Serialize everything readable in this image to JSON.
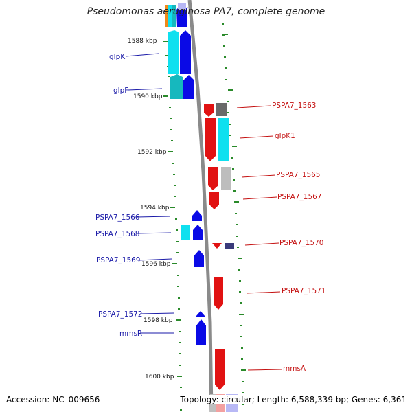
{
  "title": "Pseudomonas aeruginosa PA7, complete genome",
  "accession": "Accession: NC_009656",
  "topology": "Topology: circular; Length: 6,588,339 bp; Genes: 6,361",
  "colors": {
    "blue": "#0a0ae6",
    "red": "#e11212",
    "cyan": "#0fe0ef",
    "teal": "#16b8be",
    "grey": "#6a6a6a",
    "light_grey": "#bdbdbd",
    "navy": "#3a3a7a",
    "tick": "#2a8a2a",
    "backbone": "#8a8a8a"
  },
  "kbp_labels": [
    "1588 kbp",
    "1590 kbp",
    "1592 kbp",
    "1594 kbp",
    "1596 kbp",
    "1598 kbp",
    "1600 kbp"
  ],
  "left_genes": [
    "glpK",
    "glpF",
    "PSPA7_1566",
    "PSPA7_1568",
    "PSPA7_1569",
    "PSPA7_1572",
    "mmsR"
  ],
  "right_genes": [
    "PSPA7_1563",
    "glpK1",
    "PSPA7_1565",
    "PSPA7_1567",
    "PSPA7_1570",
    "PSPA7_1571",
    "mmsA"
  ]
}
